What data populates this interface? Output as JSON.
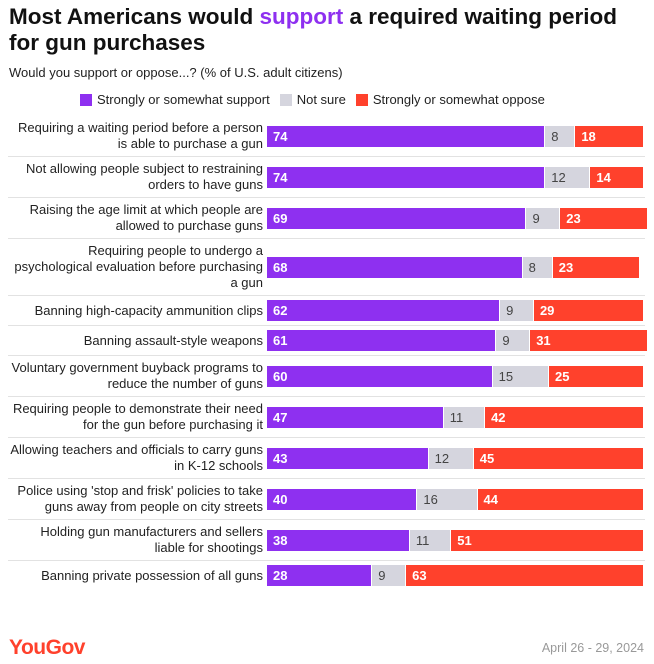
{
  "chart_data": {
    "type": "stacked_bar_horizontal",
    "title": [
      "Most Americans would",
      "support",
      "a required waiting period for gun purchases"
    ],
    "title_highlight_color": "#8e30f0",
    "subtitle": "Would you support or oppose...? (% of U.S. adult citizens)",
    "categories": [
      "Requiring a waiting period before a person is able to purchase a gun",
      "Not allowing people subject to restraining orders to have guns",
      "Raising the age limit at which people are allowed to purchase guns",
      "Requiring people to undergo a psychological evaluation before purchasing a gun",
      "Banning high-capacity ammunition clips",
      "Banning assault-style weapons",
      "Voluntary government buyback programs to reduce the number of guns",
      "Requiring people to demonstrate their need for the gun before purchasing it",
      "Allowing teachers and officials to carry guns in K-12 schools",
      "Police using 'stop and frisk' policies to take guns away from people on city streets",
      "Holding gun manufacturers and sellers liable for shootings",
      "Banning private possession of all guns"
    ],
    "series": [
      {
        "name": "Strongly or somewhat support",
        "color": "#8e30f0",
        "values": [
          74,
          74,
          69,
          68,
          62,
          61,
          60,
          47,
          43,
          40,
          38,
          28
        ]
      },
      {
        "name": "Not sure",
        "color": "#d5d5de",
        "values": [
          8,
          12,
          9,
          8,
          9,
          9,
          15,
          11,
          12,
          16,
          11,
          9
        ]
      },
      {
        "name": "Strongly or somewhat oppose",
        "color": "#ff412c",
        "values": [
          18,
          14,
          23,
          23,
          29,
          31,
          25,
          42,
          45,
          44,
          51,
          63
        ]
      }
    ],
    "xlim": [
      0,
      100
    ],
    "source": "YouGov",
    "date": "April 26 - 29, 2024"
  }
}
